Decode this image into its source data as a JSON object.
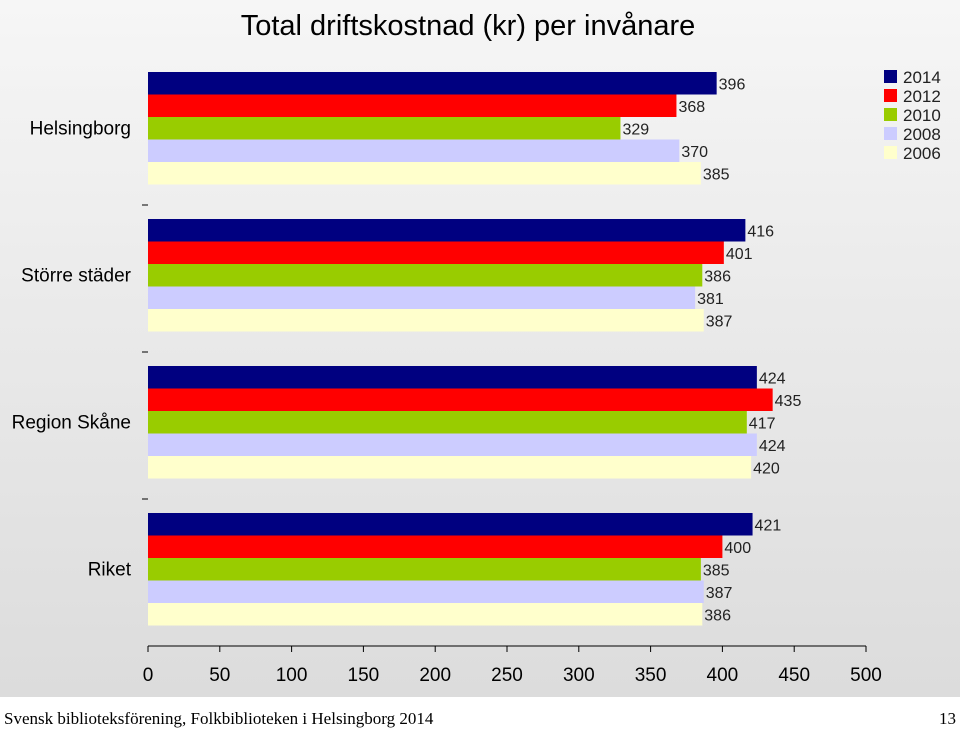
{
  "chart_data": {
    "type": "bar",
    "orientation": "horizontal",
    "title": "Total driftskostnad (kr) per invånare",
    "categories": [
      "Helsingborg",
      "Större städer",
      "Region Skåne",
      "Riket"
    ],
    "series": [
      {
        "name": "2014",
        "color": "#000080",
        "values": [
          396,
          416,
          424,
          421
        ]
      },
      {
        "name": "2012",
        "color": "#ff0000",
        "values": [
          368,
          401,
          435,
          400
        ]
      },
      {
        "name": "2010",
        "color": "#99cc00",
        "values": [
          329,
          386,
          417,
          385
        ]
      },
      {
        "name": "2008",
        "color": "#ccccff",
        "values": [
          370,
          381,
          424,
          387
        ]
      },
      {
        "name": "2006",
        "color": "#ffffcc",
        "values": [
          385,
          387,
          420,
          386
        ]
      }
    ],
    "xlim": [
      0,
      500
    ],
    "xticks": [
      0,
      50,
      100,
      150,
      200,
      250,
      300,
      350,
      400,
      450,
      500
    ],
    "grid": false,
    "legend": "top-right"
  },
  "footer": {
    "source": "Svensk biblioteksförening, Folkbiblioteken i Helsingborg 2014",
    "page_number": "13"
  }
}
